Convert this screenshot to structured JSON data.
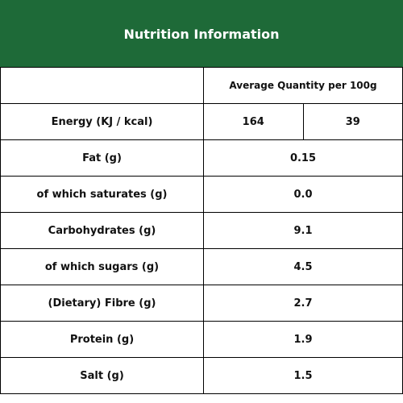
{
  "header": {
    "title": "Nutrition Information",
    "bg_color": "#1e6a38"
  },
  "table": {
    "column_header": "Average Quantity per 100g",
    "energy": {
      "label": "Energy (KJ / kcal)",
      "kj": "164",
      "kcal": "39"
    },
    "rows": [
      {
        "label": "Fat (g)",
        "value": "0.15"
      },
      {
        "label": "of which saturates (g)",
        "value": "0.0"
      },
      {
        "label": "Carbohydrates (g)",
        "value": "9.1"
      },
      {
        "label": "of which sugars (g)",
        "value": "4.5"
      },
      {
        "label": "(Dietary) Fibre (g)",
        "value": "2.7"
      },
      {
        "label": "Protein (g)",
        "value": "1.9"
      },
      {
        "label": "Salt (g)",
        "value": "1.5"
      }
    ]
  }
}
